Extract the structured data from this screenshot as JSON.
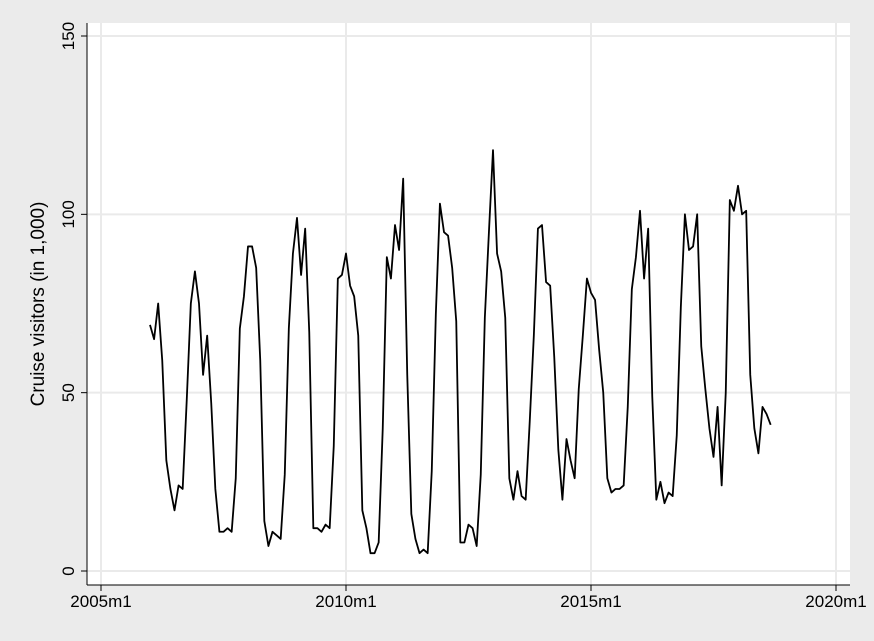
{
  "chart_data": {
    "type": "line",
    "xlabel": "",
    "ylabel": "Cruise visitors (in 1,000)",
    "ylim": [
      0,
      150
    ],
    "xlim": [
      "2005m1",
      "2020m1"
    ],
    "x_ticks": [
      "2005m1",
      "2010m1",
      "2015m1",
      "2020m1"
    ],
    "y_ticks": [
      0,
      50,
      100,
      150
    ],
    "grid": true,
    "legend": "none",
    "colors": {
      "background": "#ebebeb",
      "plot_area": "#ffffff",
      "grid": "#eaeaea",
      "line": "#000000"
    },
    "series": [
      {
        "start": "2006m1",
        "values": [
          69,
          65,
          75,
          59,
          31,
          23,
          17,
          24,
          23,
          48,
          75,
          84,
          75,
          55,
          66,
          47,
          23,
          11,
          11,
          12,
          11,
          26,
          68,
          77,
          91,
          91,
          85,
          59,
          14,
          7,
          11,
          10,
          9,
          27,
          68,
          89,
          99,
          83,
          96,
          67,
          12,
          12,
          11,
          13,
          12,
          35,
          82,
          83,
          89,
          80,
          77,
          66,
          17,
          12,
          5,
          5,
          8,
          40,
          88,
          82,
          97,
          90,
          110,
          55,
          16,
          9,
          5,
          6,
          5,
          28,
          72,
          103,
          95,
          94,
          85,
          70,
          8,
          8,
          13,
          12,
          7,
          27,
          71,
          95,
          118,
          89,
          84,
          71,
          26,
          20,
          28,
          21,
          20,
          42,
          66,
          96,
          97,
          81,
          80,
          60,
          34,
          20,
          37,
          31,
          26,
          51,
          66,
          82,
          78,
          76,
          62,
          50,
          26,
          22,
          23,
          23,
          24,
          46,
          79,
          88,
          101,
          82,
          96,
          49,
          20,
          25,
          19,
          22,
          21,
          38,
          74,
          100,
          90,
          91,
          100,
          63,
          51,
          40,
          32,
          46,
          24,
          50,
          104,
          101,
          108,
          100,
          101,
          55,
          40,
          33,
          46,
          44,
          41
        ]
      }
    ]
  }
}
